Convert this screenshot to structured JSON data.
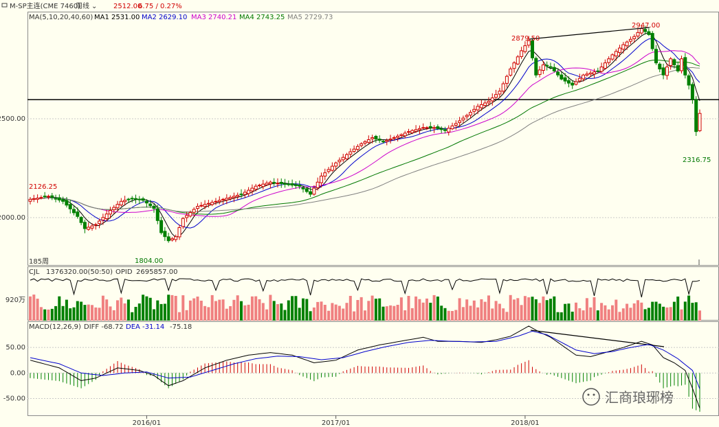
{
  "header": {
    "symbol": "M-SP主连(CME 7460)",
    "period": "周线",
    "last": "2512.00",
    "change": "6.75 / 0.27%"
  },
  "main": {
    "ma_title": "MA(5,10,20,40,60)",
    "ma_values": [
      {
        "label": "MA1 2531.00",
        "color": "#000000"
      },
      {
        "label": "MA2 2629.10",
        "color": "#0000cc"
      },
      {
        "label": "MA3 2740.21",
        "color": "#cc00cc"
      },
      {
        "label": "MA4 2743.25",
        "color": "#007700"
      },
      {
        "label": "MA5 2729.73",
        "color": "#808080"
      }
    ],
    "bars_label": "185周",
    "annotations": {
      "high1": "2879.50",
      "high2": "2947.00",
      "start": "2126.25",
      "low1": "1804.00",
      "low2": "2316.75"
    }
  },
  "volume": {
    "title": "CJL",
    "cjl_value": "1376320.00(50:50)",
    "opid_label": "OPID",
    "opid_value": "2695857.00",
    "axis_label": "920万"
  },
  "macd": {
    "title": "MACD(12,26,9)",
    "diff": "DIFF -68.72",
    "dea": "DEA -31.14",
    "hist": "-75.18"
  },
  "watermark": "汇商琅琊榜",
  "chart_data": {
    "type": "candlestick",
    "weeks": 185,
    "x_ticks": [
      "2016/01",
      "2017/01",
      "2018/01"
    ],
    "price_axis": {
      "ticks": [
        2000.0,
        2500.0
      ],
      "labels": [
        "2000.00",
        "2500.00"
      ],
      "range": [
        1760,
        3010
      ]
    },
    "horizontal_line": 2578,
    "macd_axis": {
      "ticks": [
        50,
        0,
        -50
      ],
      "labels": [
        "50.00",
        "0.00",
        "-50.00"
      ],
      "range": [
        -83,
        100
      ]
    },
    "price_path": [
      {
        "i": 0,
        "p": 2085
      },
      {
        "i": 5,
        "p": 2100
      },
      {
        "i": 9,
        "p": 2075
      },
      {
        "i": 13,
        "p": 2000
      },
      {
        "i": 15,
        "p": 1940
      },
      {
        "i": 18,
        "p": 1960
      },
      {
        "i": 22,
        "p": 2030
      },
      {
        "i": 25,
        "p": 2075
      },
      {
        "i": 28,
        "p": 2090
      },
      {
        "i": 31,
        "p": 2080
      },
      {
        "i": 34,
        "p": 2040
      },
      {
        "i": 36,
        "p": 1920
      },
      {
        "i": 38,
        "p": 1880
      },
      {
        "i": 40,
        "p": 1900
      },
      {
        "i": 42,
        "p": 1990
      },
      {
        "i": 46,
        "p": 2050
      },
      {
        "i": 50,
        "p": 2070
      },
      {
        "i": 54,
        "p": 2090
      },
      {
        "i": 58,
        "p": 2110
      },
      {
        "i": 62,
        "p": 2150
      },
      {
        "i": 66,
        "p": 2170
      },
      {
        "i": 70,
        "p": 2160
      },
      {
        "i": 74,
        "p": 2150
      },
      {
        "i": 77,
        "p": 2110
      },
      {
        "i": 80,
        "p": 2200
      },
      {
        "i": 84,
        "p": 2265
      },
      {
        "i": 88,
        "p": 2320
      },
      {
        "i": 91,
        "p": 2360
      },
      {
        "i": 94,
        "p": 2390
      },
      {
        "i": 97,
        "p": 2370
      },
      {
        "i": 100,
        "p": 2390
      },
      {
        "i": 104,
        "p": 2420
      },
      {
        "i": 108,
        "p": 2440
      },
      {
        "i": 111,
        "p": 2440
      },
      {
        "i": 114,
        "p": 2425
      },
      {
        "i": 117,
        "p": 2460
      },
      {
        "i": 120,
        "p": 2500
      },
      {
        "i": 123,
        "p": 2545
      },
      {
        "i": 126,
        "p": 2570
      },
      {
        "i": 129,
        "p": 2620
      },
      {
        "i": 132,
        "p": 2730
      },
      {
        "i": 135,
        "p": 2820
      },
      {
        "i": 137,
        "p": 2870
      },
      {
        "i": 139,
        "p": 2700
      },
      {
        "i": 141,
        "p": 2750
      },
      {
        "i": 143,
        "p": 2740
      },
      {
        "i": 146,
        "p": 2680
      },
      {
        "i": 149,
        "p": 2650
      },
      {
        "i": 152,
        "p": 2700
      },
      {
        "i": 156,
        "p": 2720
      },
      {
        "i": 160,
        "p": 2800
      },
      {
        "i": 163,
        "p": 2850
      },
      {
        "i": 166,
        "p": 2890
      },
      {
        "i": 168,
        "p": 2930
      },
      {
        "i": 170,
        "p": 2900
      },
      {
        "i": 172,
        "p": 2760
      },
      {
        "i": 174,
        "p": 2700
      },
      {
        "i": 176,
        "p": 2780
      },
      {
        "i": 178,
        "p": 2720
      },
      {
        "i": 179,
        "p": 2780
      },
      {
        "i": 180,
        "p": 2700
      },
      {
        "i": 181,
        "p": 2650
      },
      {
        "i": 182,
        "p": 2580
      },
      {
        "i": 183,
        "p": 2420
      },
      {
        "i": 184,
        "p": 2510
      }
    ],
    "macd_diff_path": [
      {
        "i": 0,
        "v": 25
      },
      {
        "i": 8,
        "v": 10
      },
      {
        "i": 14,
        "v": -15
      },
      {
        "i": 18,
        "v": -10
      },
      {
        "i": 24,
        "v": 10
      },
      {
        "i": 30,
        "v": 5
      },
      {
        "i": 34,
        "v": -5
      },
      {
        "i": 38,
        "v": -25
      },
      {
        "i": 42,
        "v": -15
      },
      {
        "i": 48,
        "v": 10
      },
      {
        "i": 54,
        "v": 25
      },
      {
        "i": 60,
        "v": 35
      },
      {
        "i": 66,
        "v": 40
      },
      {
        "i": 72,
        "v": 35
      },
      {
        "i": 78,
        "v": 20
      },
      {
        "i": 84,
        "v": 25
      },
      {
        "i": 90,
        "v": 45
      },
      {
        "i": 96,
        "v": 55
      },
      {
        "i": 100,
        "v": 60
      },
      {
        "i": 104,
        "v": 65
      },
      {
        "i": 108,
        "v": 70
      },
      {
        "i": 112,
        "v": 62
      },
      {
        "i": 118,
        "v": 62
      },
      {
        "i": 124,
        "v": 60
      },
      {
        "i": 128,
        "v": 65
      },
      {
        "i": 132,
        "v": 72
      },
      {
        "i": 137,
        "v": 92
      },
      {
        "i": 140,
        "v": 80
      },
      {
        "i": 143,
        "v": 70
      },
      {
        "i": 147,
        "v": 50
      },
      {
        "i": 150,
        "v": 35
      },
      {
        "i": 154,
        "v": 32
      },
      {
        "i": 158,
        "v": 40
      },
      {
        "i": 163,
        "v": 50
      },
      {
        "i": 168,
        "v": 62
      },
      {
        "i": 171,
        "v": 55
      },
      {
        "i": 174,
        "v": 30
      },
      {
        "i": 177,
        "v": 20
      },
      {
        "i": 180,
        "v": 5
      },
      {
        "i": 182,
        "v": -30
      },
      {
        "i": 184,
        "v": -69
      }
    ],
    "macd_dea_path": [
      {
        "i": 0,
        "v": 30
      },
      {
        "i": 8,
        "v": 18
      },
      {
        "i": 14,
        "v": 0
      },
      {
        "i": 20,
        "v": -5
      },
      {
        "i": 26,
        "v": 0
      },
      {
        "i": 32,
        "v": 2
      },
      {
        "i": 38,
        "v": -10
      },
      {
        "i": 44,
        "v": -8
      },
      {
        "i": 50,
        "v": 5
      },
      {
        "i": 56,
        "v": 18
      },
      {
        "i": 62,
        "v": 28
      },
      {
        "i": 68,
        "v": 33
      },
      {
        "i": 74,
        "v": 32
      },
      {
        "i": 80,
        "v": 26
      },
      {
        "i": 86,
        "v": 30
      },
      {
        "i": 92,
        "v": 42
      },
      {
        "i": 98,
        "v": 52
      },
      {
        "i": 104,
        "v": 60
      },
      {
        "i": 110,
        "v": 64
      },
      {
        "i": 116,
        "v": 62
      },
      {
        "i": 122,
        "v": 61
      },
      {
        "i": 128,
        "v": 62
      },
      {
        "i": 134,
        "v": 72
      },
      {
        "i": 138,
        "v": 82
      },
      {
        "i": 142,
        "v": 75
      },
      {
        "i": 146,
        "v": 60
      },
      {
        "i": 150,
        "v": 45
      },
      {
        "i": 155,
        "v": 38
      },
      {
        "i": 160,
        "v": 42
      },
      {
        "i": 165,
        "v": 50
      },
      {
        "i": 170,
        "v": 56
      },
      {
        "i": 174,
        "v": 45
      },
      {
        "i": 178,
        "v": 28
      },
      {
        "i": 182,
        "v": 5
      },
      {
        "i": 184,
        "v": -31
      }
    ]
  }
}
